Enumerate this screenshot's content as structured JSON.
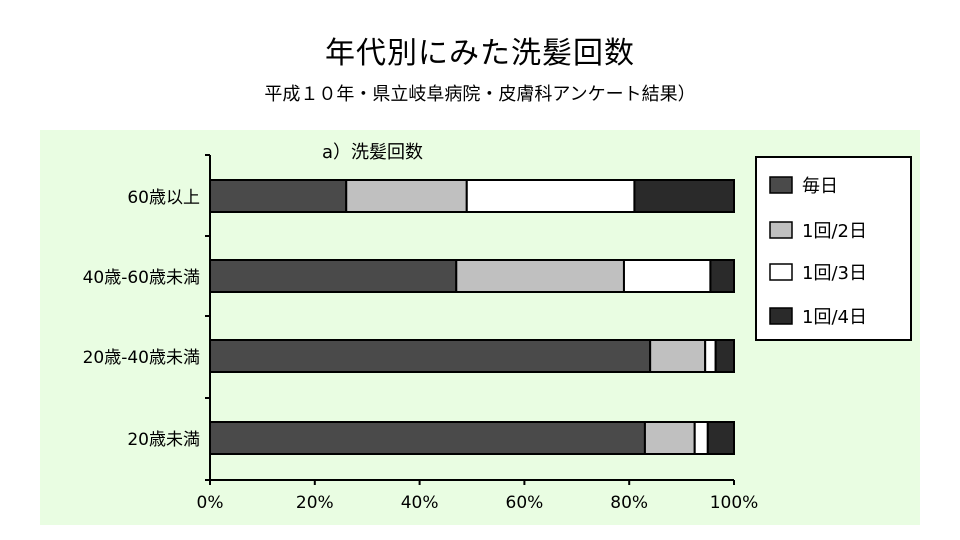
{
  "title": "年代別にみた洗髪回数",
  "subtitle": "平成１０年・県立岐阜病院・皮膚科アンケート結果）",
  "chart_data": {
    "type": "bar",
    "orientation": "horizontal",
    "stacked": "percent",
    "title": "a）洗髪回数",
    "categories": [
      "60歳以上",
      "40歳-60歳未満",
      "20歳-40歳未満",
      "20歳未満"
    ],
    "series": [
      {
        "name": "毎日",
        "values": [
          26,
          47,
          84,
          83
        ],
        "color": "#4a4a4a"
      },
      {
        "name": "1回/2日",
        "values": [
          23,
          32,
          10.5,
          9.5
        ],
        "color": "#c0c0c0"
      },
      {
        "name": "1回/3日",
        "values": [
          32,
          16.5,
          2,
          2.5
        ],
        "color": "#ffffff"
      },
      {
        "name": "1回/4日",
        "values": [
          19,
          4.5,
          3.5,
          5
        ],
        "color": "#2a2a2a"
      }
    ],
    "xlim": [
      0,
      100
    ],
    "xticks": [
      "0%",
      "20%",
      "40%",
      "60%",
      "80%",
      "100%"
    ],
    "legend": "right",
    "grid": false,
    "plot_background": "#e9fde2"
  }
}
